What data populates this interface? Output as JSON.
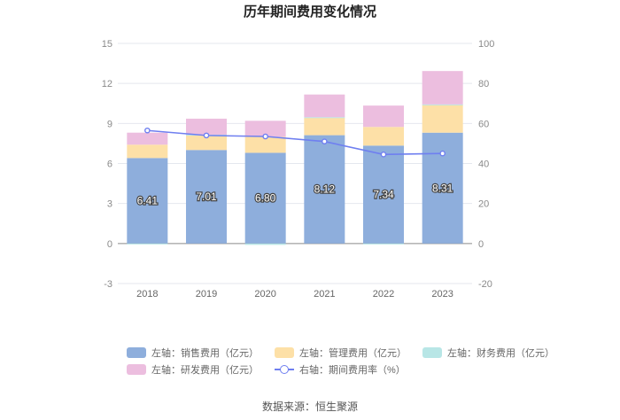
{
  "chart_data": {
    "type": "bar",
    "title": "历年期间费用变化情况",
    "categories": [
      "2018",
      "2019",
      "2020",
      "2021",
      "2022",
      "2023"
    ],
    "left_axis": {
      "min": -3,
      "max": 15,
      "ticks": [
        "15",
        "12",
        "9",
        "6",
        "3",
        "0",
        "-3"
      ]
    },
    "right_axis": {
      "min": -20,
      "max": 100,
      "ticks": [
        "100",
        "80",
        "60",
        "40",
        "20",
        "0",
        "-20"
      ]
    },
    "series": [
      {
        "name": "左轴：销售费用（亿元）",
        "axis": "left",
        "stack": true,
        "color": "#8eaedc",
        "values": [
          6.41,
          7.01,
          6.8,
          8.12,
          7.34,
          8.31
        ],
        "labels": [
          "6.41",
          "7.01",
          "6.80",
          "8.12",
          "7.34",
          "8.31"
        ]
      },
      {
        "name": "左轴：管理费用（亿元）",
        "axis": "left",
        "stack": true,
        "color": "#fde0a7",
        "values": [
          1.0,
          1.1,
          1.2,
          1.3,
          1.4,
          2.1
        ]
      },
      {
        "name": "左轴：财务费用（亿元）",
        "axis": "left",
        "stack": true,
        "color": "#b8e6e6",
        "values": [
          -0.05,
          0.05,
          -0.1,
          0.05,
          -0.05,
          0.02
        ]
      },
      {
        "name": "左轴：研发费用（亿元）",
        "axis": "left",
        "stack": true,
        "color": "#ecbedf",
        "values": [
          0.9,
          1.2,
          1.2,
          1.7,
          1.6,
          2.5
        ]
      },
      {
        "name": "右轴：期间费用率（%）",
        "axis": "right",
        "type": "line",
        "color": "#6f7ff0",
        "values": [
          56.5,
          54.0,
          53.5,
          51.0,
          44.5,
          45.0
        ]
      }
    ]
  },
  "legend": {
    "row1": [
      "左轴：销售费用（亿元）",
      "左轴：管理费用（亿元）",
      "左轴：财务费用（亿元）"
    ],
    "row2": [
      "左轴：研发费用（亿元）",
      "右轴：期间费用率（%）"
    ]
  },
  "source": "数据来源：恒生聚源"
}
